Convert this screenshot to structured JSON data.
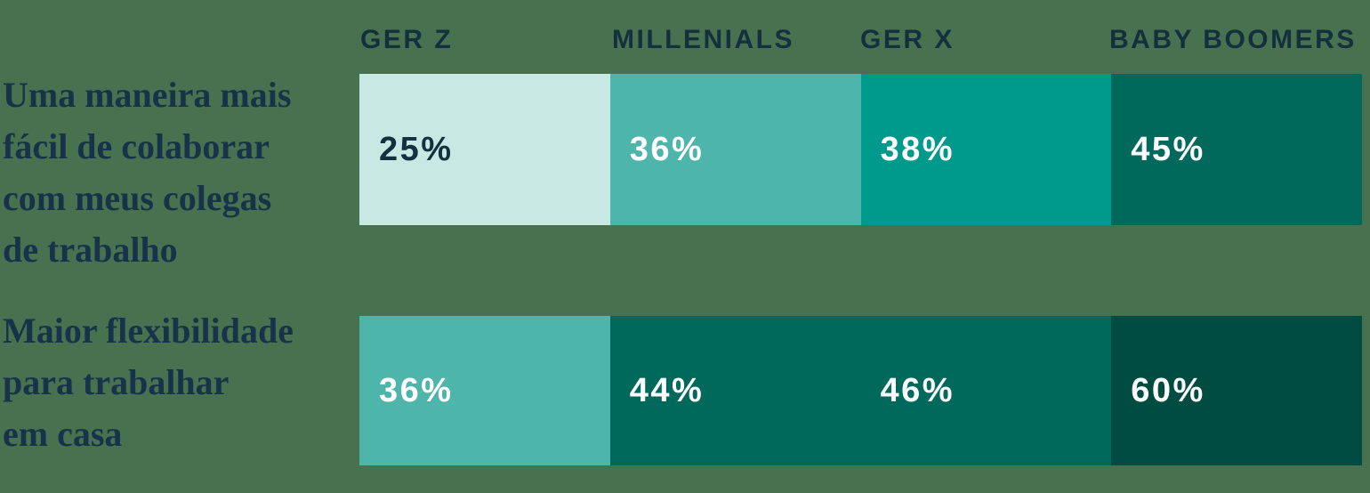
{
  "page": {
    "background_color": "#48714F",
    "text_navy": "#16334A",
    "header_navy": "#14303F"
  },
  "palette": {
    "mint": "#C8E9E3",
    "teal_medium": "#4DB5AA",
    "teal": "#009A8C",
    "teal_dark": "#00695C",
    "teal_darkest": "#004C41"
  },
  "chart_data": {
    "type": "heatmap",
    "categories": [
      "GER Z",
      "MILLENIALS",
      "GER X",
      "BABY BOOMERS"
    ],
    "unit": "%",
    "grid": false,
    "legend_position": "none",
    "value_range": [
      0,
      100
    ],
    "rows": [
      {
        "label": "Uma maneira mais fácil de colaborar com meus colegas de trabalho",
        "label_lines": [
          "Uma maneira mais",
          "fácil de colaborar",
          "com meus colegas",
          "de trabalho"
        ],
        "values": [
          25,
          36,
          38,
          45
        ],
        "cells": [
          {
            "text": "25%",
            "style": "background:#C8E9E3;color:#14303F"
          },
          {
            "text": "36%",
            "style": "background:#4DB5AA;color:#FFFFFF"
          },
          {
            "text": "38%",
            "style": "background:#009A8C;color:#FFFFFF"
          },
          {
            "text": "45%",
            "style": "background:#00695C;color:#FFFFFF"
          }
        ]
      },
      {
        "label": "Maior flexibilidade para trabalhar em casa",
        "label_lines": [
          "Maior flexibilidade",
          "para trabalhar",
          "em casa"
        ],
        "values": [
          36,
          44,
          46,
          60
        ],
        "cells": [
          {
            "text": "36%",
            "style": "background:#4DB5AA;color:#FFFFFF"
          },
          {
            "text": "44%",
            "style": "background:#00695C;color:#FFFFFF"
          },
          {
            "text": "46%",
            "style": "background:#00695C;color:#FFFFFF"
          },
          {
            "text": "60%",
            "style": "background:#004C41;color:#FFFFFF"
          }
        ]
      }
    ]
  }
}
